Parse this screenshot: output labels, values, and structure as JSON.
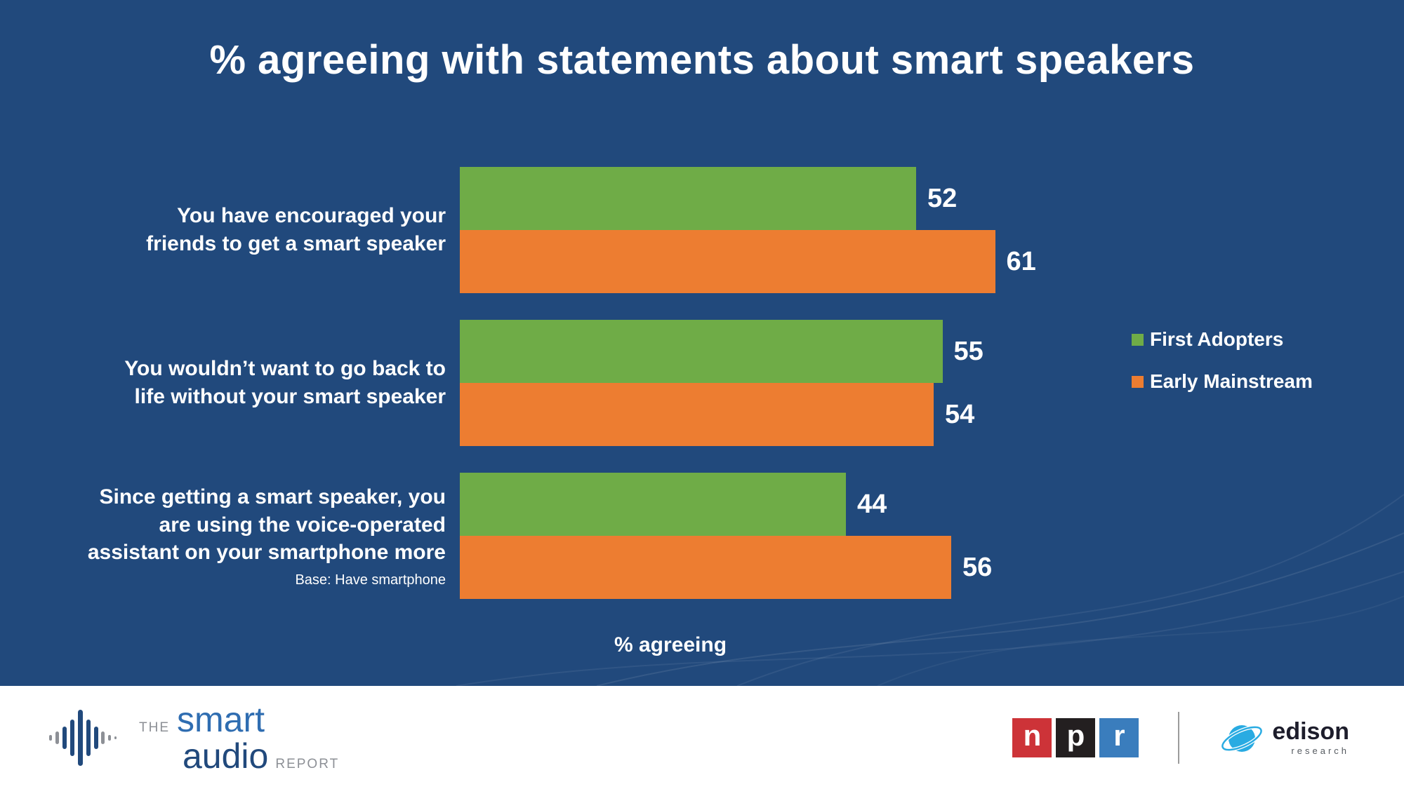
{
  "title": "% agreeing with statements about smart speakers",
  "chart_data": {
    "type": "bar",
    "orientation": "horizontal",
    "title": "% agreeing with statements about smart speakers",
    "xlabel": "% agreeing",
    "xmax": 70,
    "legend_position": "right",
    "categories": [
      {
        "label": "You have encouraged your\nfriends to get a smart speaker",
        "note": ""
      },
      {
        "label": "You wouldn’t want to go back to\nlife without your smart speaker",
        "note": ""
      },
      {
        "label": "Since getting a smart speaker, you\nare using the voice-operated\nassistant on your smartphone more",
        "note": "Base: Have smartphone"
      }
    ],
    "series": [
      {
        "name": "First Adopters",
        "color": "#6FAC47",
        "values": [
          52,
          55,
          44
        ]
      },
      {
        "name": "Early Mainstream",
        "color": "#ED7D31",
        "values": [
          61,
          54,
          56
        ]
      }
    ]
  },
  "colors": {
    "background": "#21497C",
    "green": "#6FAC47",
    "orange": "#ED7D31",
    "text": "#ffffff"
  },
  "footer": {
    "smart_audio": {
      "the": "THE",
      "smart": "smart",
      "audio": "audio",
      "report": "REPORT"
    },
    "npr_letters": [
      "n",
      "p",
      "r"
    ],
    "npr_colors": [
      "#cd3338",
      "#231f20",
      "#3a7dbd"
    ],
    "edison": {
      "name": "edison",
      "sub": "research"
    }
  }
}
